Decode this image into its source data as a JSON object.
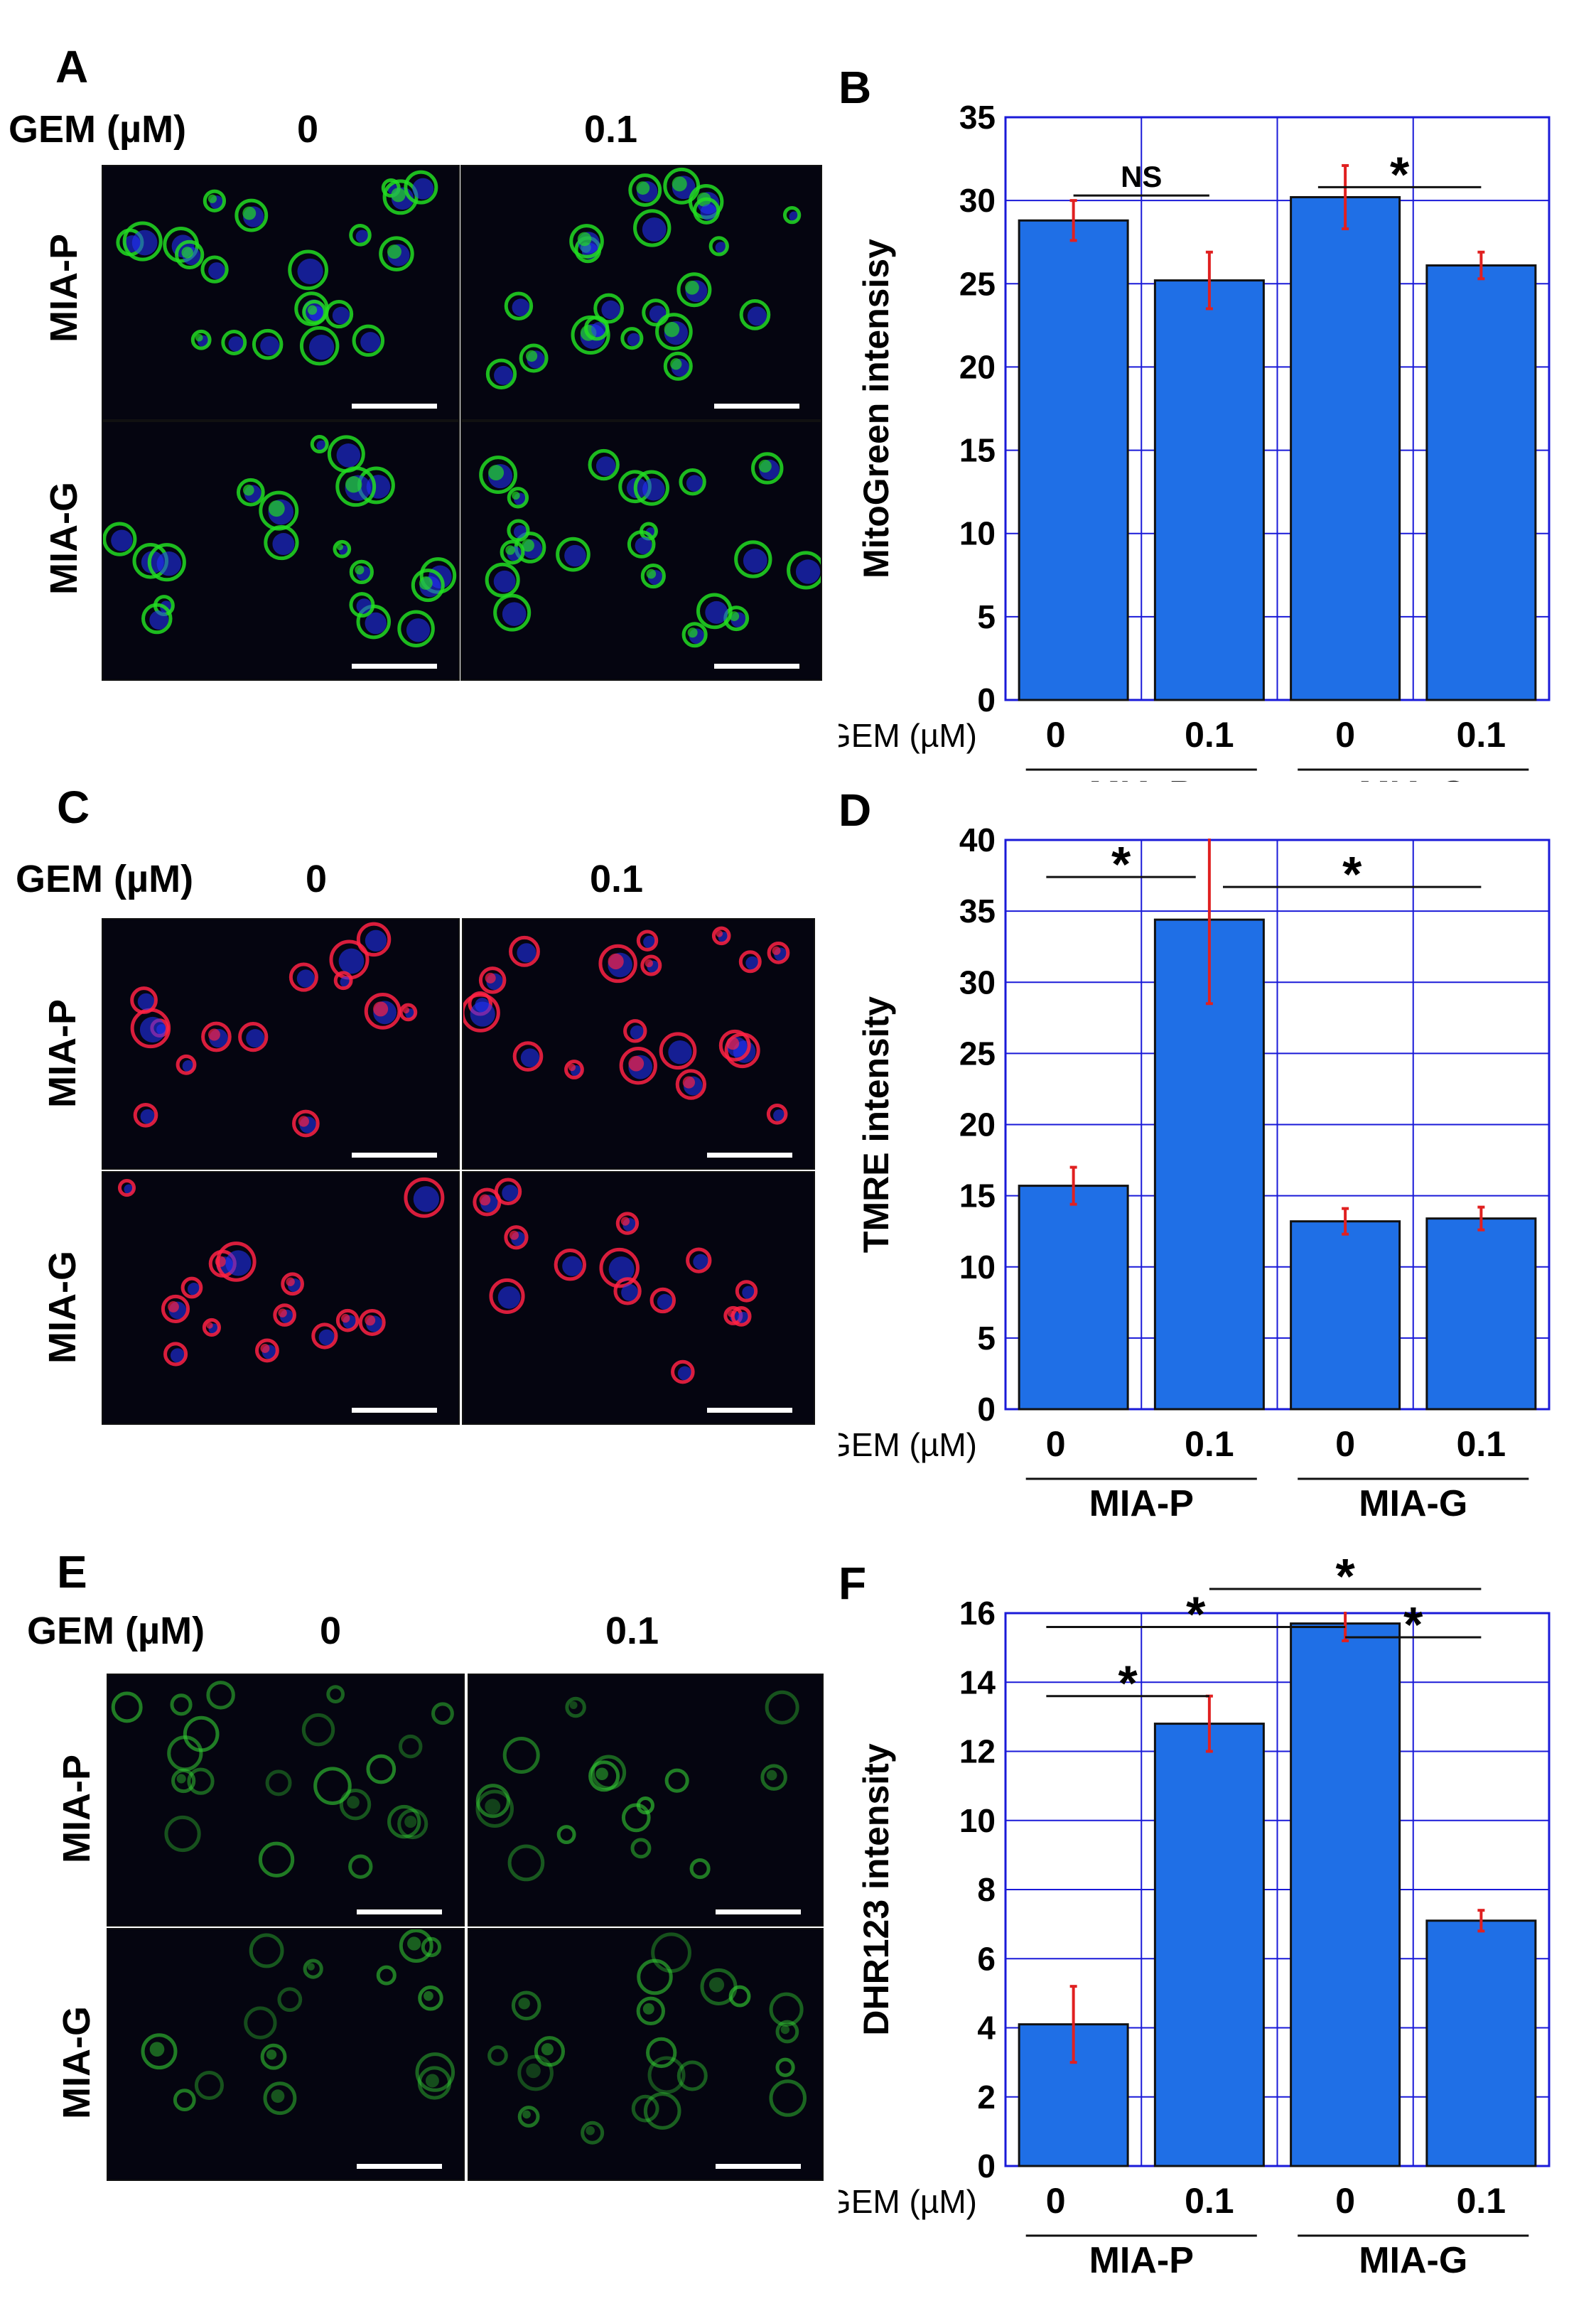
{
  "panels": [
    {
      "letter": "A",
      "gem_label": "GEM (µM)",
      "conc_labels": [
        "0",
        "0.1"
      ],
      "row_labels": [
        "MIA-P",
        "MIA-G"
      ],
      "stain_color": "#22dd22",
      "nucleus_color": "#2233ff"
    },
    {
      "letter": "C",
      "gem_label": "GEM (µM)",
      "conc_labels": [
        "0",
        "0.1"
      ],
      "row_labels": [
        "MIA-P",
        "MIA-G"
      ],
      "stain_color": "#ff2244",
      "nucleus_color": "#2233ff"
    },
    {
      "letter": "E",
      "gem_label": "GEM (µM)",
      "conc_labels": [
        "0",
        "0.1"
      ],
      "row_labels": [
        "MIA-P",
        "MIA-G"
      ],
      "stain_color": "#33cc33",
      "nucleus_color": ""
    }
  ],
  "chart_data": [
    {
      "letter": "B",
      "type": "bar",
      "ylabel": "MitoGreen intensisy",
      "ylim": [
        0,
        35
      ],
      "yticks": [
        0,
        5,
        10,
        15,
        20,
        25,
        30,
        35
      ],
      "x_prefix": "GEM (µM)",
      "categories": [
        "0",
        "0.1",
        "0",
        "0.1"
      ],
      "groups": [
        "MIA-P",
        "MIA-G"
      ],
      "values": [
        28.8,
        25.2,
        30.2,
        26.1
      ],
      "errors": [
        1.2,
        1.7,
        1.9,
        0.8
      ],
      "bar_color": "#1f6fe6",
      "error_color": "#e02020",
      "grid_color": "#1a1ad8",
      "significance": [
        {
          "label": "NS",
          "from": 0.5,
          "to": 1.5,
          "y": 30.3
        },
        {
          "label": "*",
          "from": 2.3,
          "to": 3.5,
          "y": 30.8
        }
      ]
    },
    {
      "letter": "D",
      "type": "bar",
      "ylabel": "TMRE  intensity",
      "ylim": [
        0,
        40
      ],
      "yticks": [
        0,
        5,
        10,
        15,
        20,
        25,
        30,
        35,
        40
      ],
      "x_prefix": "GEM (µM)",
      "categories": [
        "0",
        "0.1",
        "0",
        "0.1"
      ],
      "groups": [
        "MIA-P",
        "MIA-G"
      ],
      "values": [
        15.7,
        34.4,
        13.2,
        13.4
      ],
      "errors": [
        1.3,
        5.9,
        0.9,
        0.8
      ],
      "bar_color": "#1f6fe6",
      "error_color": "#e02020",
      "grid_color": "#1a1ad8",
      "significance": [
        {
          "label": "*",
          "from": 0.3,
          "to": 1.4,
          "y": 37.4
        },
        {
          "label": "*",
          "from": 1.6,
          "to": 3.5,
          "y": 36.7
        }
      ]
    },
    {
      "letter": "F",
      "type": "bar",
      "ylabel": "DHR123  intensity",
      "ylim": [
        0,
        16
      ],
      "yticks": [
        0,
        2,
        4,
        6,
        8,
        10,
        12,
        14,
        16
      ],
      "x_prefix": "GEM (µM)",
      "categories": [
        "0",
        "0.1",
        "0",
        "0.1"
      ],
      "groups": [
        "MIA-P",
        "MIA-G"
      ],
      "values": [
        4.1,
        12.8,
        15.7,
        7.1
      ],
      "errors": [
        1.1,
        0.8,
        0.5,
        0.3
      ],
      "bar_color": "#1f6fe6",
      "error_color": "#e02020",
      "grid_color": "#1a1ad8",
      "significance": [
        {
          "label": "*",
          "from": 1.5,
          "to": 3.5,
          "y": 16.7
        },
        {
          "label": "*",
          "from": 0.3,
          "to": 2.5,
          "y": 15.6
        },
        {
          "label": "*",
          "from": 2.5,
          "to": 3.5,
          "y": 15.3
        },
        {
          "label": "*",
          "from": 0.3,
          "to": 1.5,
          "y": 13.6
        }
      ]
    }
  ]
}
